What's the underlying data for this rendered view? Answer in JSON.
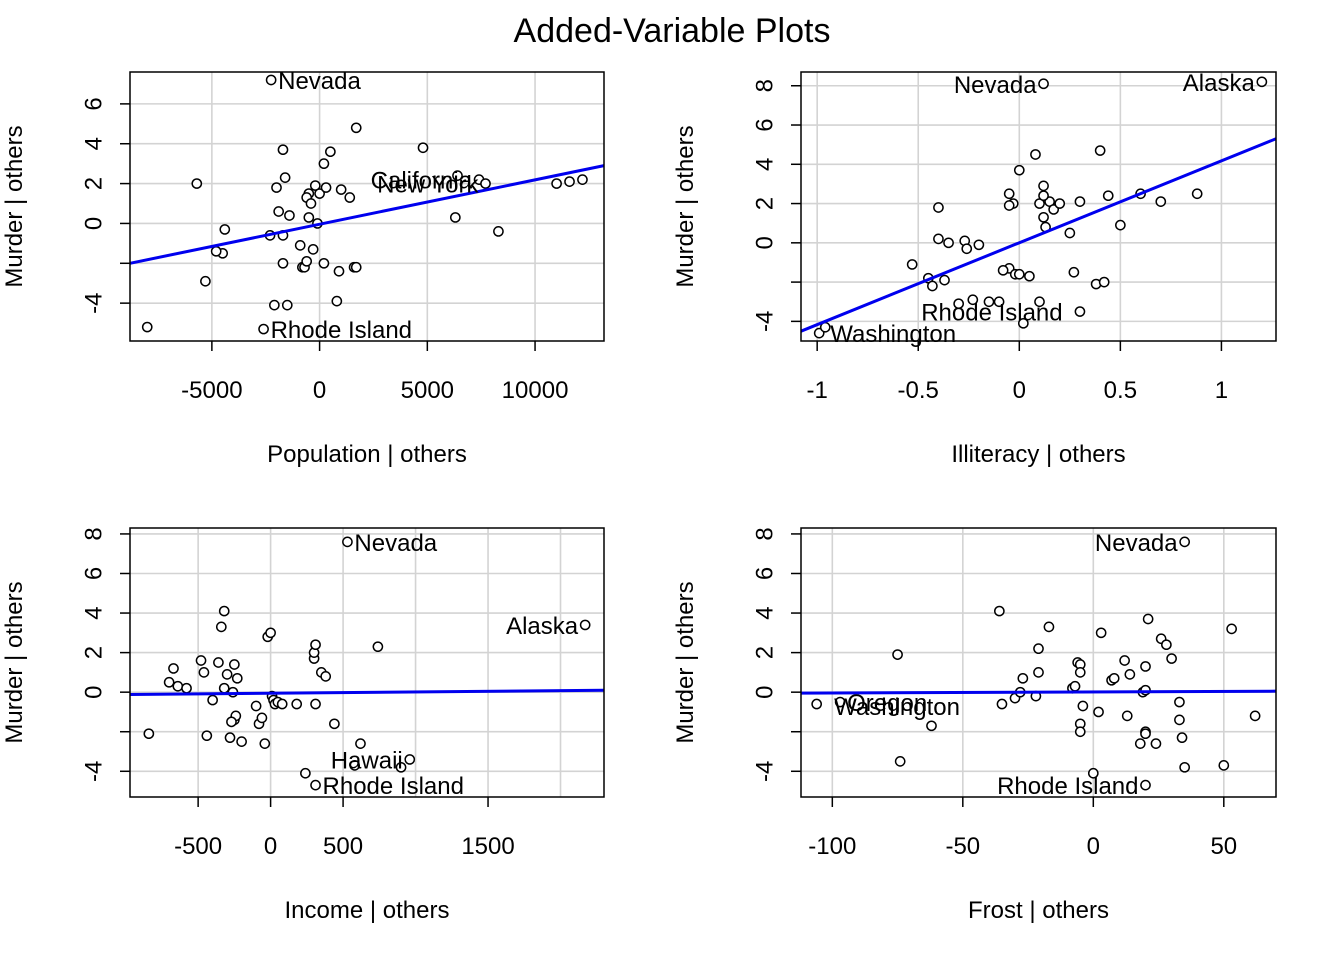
{
  "title": "Added-Variable Plots",
  "chart_data": [
    {
      "type": "scatter",
      "xlabel": "Population | others",
      "ylabel": "Murder  | others",
      "xlim": [
        -8800,
        13200
      ],
      "ylim": [
        -5.9,
        7.6
      ],
      "xticks": [
        -5000,
        0,
        5000,
        10000
      ],
      "yticks": [
        -4,
        0,
        2,
        4,
        6
      ],
      "x_gridlines": [
        -5000,
        0,
        5000,
        10000
      ],
      "y_gridlines": [
        -4,
        -2,
        0,
        2,
        4,
        6
      ],
      "grid": true,
      "line": {
        "x1": -8800,
        "y1": -2.0,
        "x2": 13200,
        "y2": 2.9,
        "color": "#0000ee"
      },
      "labels": [
        {
          "text": "Nevada",
          "x": -2250,
          "y": 7.2,
          "side": "right"
        },
        {
          "text": "Rhode Island",
          "x": -2600,
          "y": -5.3,
          "side": "right"
        },
        {
          "text": "California",
          "x": 7400,
          "y": 2.2,
          "side": "left"
        },
        {
          "text": "New York",
          "x": 7700,
          "y": 2.0,
          "side": "left"
        }
      ],
      "x": [
        -2250,
        -2600,
        -1700,
        -1600,
        -1400,
        -500,
        -600,
        200,
        -1500,
        -2100,
        -1700,
        -2300,
        -5700,
        -4400,
        -4500,
        -4800,
        -5300,
        -8000,
        -1700,
        -2000,
        -1900,
        -900,
        -800,
        -700,
        -600,
        -500,
        -400,
        -300,
        -200,
        -100,
        0,
        200,
        300,
        500,
        800,
        900,
        1000,
        1400,
        1600,
        1700,
        1700,
        4800,
        6300,
        6400,
        8300,
        7400,
        7700,
        11000,
        11600,
        12200
      ],
      "y": [
        7.2,
        -5.3,
        3.7,
        2.3,
        0.4,
        1.5,
        1.3,
        3.0,
        -4.1,
        -4.1,
        -2.0,
        -0.6,
        2.0,
        -0.3,
        -1.5,
        -1.4,
        -2.9,
        -5.2,
        -0.6,
        1.8,
        0.6,
        -1.1,
        -2.2,
        -2.2,
        -1.9,
        0.3,
        1.0,
        -1.3,
        1.9,
        0.0,
        1.5,
        -2.0,
        1.8,
        3.6,
        -3.9,
        -2.4,
        1.7,
        1.3,
        -2.2,
        -2.2,
        4.8,
        3.8,
        0.3,
        2.4,
        -0.4,
        2.2,
        2.0,
        2.0,
        2.1,
        2.2
      ]
    },
    {
      "type": "scatter",
      "xlabel": "Illiteracy | others",
      "ylabel": "Murder  | others",
      "xlim": [
        -1.08,
        1.27
      ],
      "ylim": [
        -5.0,
        8.7
      ],
      "xticks": [
        -1.0,
        -0.5,
        0.0,
        0.5,
        1.0
      ],
      "yticks": [
        -4,
        0,
        2,
        4,
        6,
        8
      ],
      "x_gridlines": [
        -1.0,
        -0.5,
        0.0,
        0.5,
        1.0
      ],
      "y_gridlines": [
        -4,
        -2,
        0,
        2,
        4,
        6,
        8
      ],
      "grid": true,
      "line": {
        "x1": -1.08,
        "y1": -4.5,
        "x2": 1.27,
        "y2": 5.3,
        "color": "#0000ee"
      },
      "labels": [
        {
          "text": "Nevada",
          "x": 0.12,
          "y": 8.1,
          "side": "left"
        },
        {
          "text": "Alaska",
          "x": 1.2,
          "y": 8.2,
          "side": "left"
        },
        {
          "text": "Rhode Island",
          "x": -0.52,
          "y": -3.5,
          "side": "right"
        },
        {
          "text": "Washington",
          "x": -0.97,
          "y": -4.6,
          "side": "right"
        }
      ],
      "x": [
        0.12,
        1.2,
        -0.99,
        -0.96,
        -0.53,
        -0.45,
        -0.4,
        -0.37,
        -0.35,
        -0.3,
        -0.27,
        -0.26,
        -0.23,
        -0.2,
        -0.15,
        -0.1,
        -0.05,
        -0.03,
        -0.02,
        0.0,
        0.02,
        0.05,
        0.08,
        0.1,
        0.12,
        0.13,
        0.15,
        0.17,
        0.2,
        0.25,
        0.27,
        0.3,
        0.38,
        0.4,
        0.42,
        0.44,
        0.5,
        0.6,
        0.7,
        0.88,
        -0.05,
        -0.05,
        -0.0,
        -0.08,
        0.1,
        0.12,
        -0.4,
        -0.43,
        0.12,
        0.3
      ],
      "y": [
        8.1,
        8.2,
        -4.6,
        -4.3,
        -1.1,
        -1.8,
        1.8,
        -1.9,
        0.0,
        -3.1,
        0.1,
        -0.3,
        -2.9,
        -0.1,
        -3.0,
        -3.0,
        -1.3,
        2.0,
        -1.6,
        -1.6,
        -4.1,
        -1.7,
        4.5,
        2.0,
        2.9,
        0.8,
        2.1,
        1.7,
        2.0,
        0.5,
        -1.5,
        2.1,
        -2.1,
        4.7,
        -2.0,
        2.4,
        0.9,
        2.5,
        2.1,
        2.5,
        2.5,
        1.9,
        3.7,
        -1.4,
        -3.0,
        2.4,
        0.2,
        -2.2,
        1.3,
        -3.5
      ]
    },
    {
      "type": "scatter",
      "xlabel": "Income | others",
      "ylabel": "Murder  | others",
      "xlim": [
        -970,
        2300
      ],
      "ylim": [
        -5.3,
        8.3
      ],
      "xticks": [
        -500,
        0,
        500,
        1500
      ],
      "yticks": [
        -4,
        0,
        2,
        4,
        6,
        8
      ],
      "x_gridlines": [
        -500,
        0,
        500,
        1000,
        1500,
        2000
      ],
      "y_gridlines": [
        -4,
        -2,
        0,
        2,
        4,
        6,
        8
      ],
      "grid": true,
      "line": {
        "x1": -970,
        "y1": -0.12,
        "x2": 2300,
        "y2": 0.1,
        "color": "#0000ee"
      },
      "labels": [
        {
          "text": "Nevada",
          "x": 530,
          "y": 7.6,
          "side": "right"
        },
        {
          "text": "Alaska",
          "x": 2170,
          "y": 3.4,
          "side": "left"
        },
        {
          "text": "Hawaii",
          "x": 960,
          "y": -3.4,
          "side": "left"
        },
        {
          "text": "Rhode Island",
          "x": 310,
          "y": -4.7,
          "side": "right"
        }
      ],
      "x": [
        530,
        2170,
        960,
        310,
        -840,
        -700,
        -670,
        -640,
        -580,
        -480,
        -440,
        -460,
        -400,
        -360,
        -340,
        -320,
        -300,
        -280,
        -260,
        -250,
        -240,
        -230,
        -200,
        -100,
        -80,
        -60,
        -40,
        -20,
        0,
        10,
        20,
        30,
        50,
        80,
        180,
        240,
        300,
        300,
        310,
        310,
        350,
        380,
        440,
        620,
        740,
        -250,
        -270,
        -320,
        900,
        580
      ],
      "y": [
        7.6,
        3.4,
        -3.4,
        -4.7,
        -2.1,
        0.5,
        1.2,
        0.3,
        0.2,
        1.6,
        -2.2,
        1.0,
        -0.4,
        1.5,
        3.3,
        4.1,
        0.9,
        -2.3,
        0.0,
        -1.4,
        -1.2,
        0.7,
        -2.5,
        -0.7,
        -1.6,
        -1.3,
        -2.6,
        2.8,
        3.0,
        -0.2,
        -0.4,
        -0.6,
        -0.5,
        -0.6,
        -0.6,
        -4.1,
        1.7,
        2.0,
        2.4,
        -0.6,
        1.0,
        0.8,
        -1.6,
        -2.6,
        2.3,
        1.4,
        -1.5,
        0.2,
        -3.8,
        -3.7
      ]
    },
    {
      "type": "scatter",
      "xlabel": "Frost | others",
      "ylabel": "Murder  | others",
      "xlim": [
        -112,
        70
      ],
      "ylim": [
        -5.3,
        8.3
      ],
      "xticks": [
        -100,
        -50,
        0,
        50
      ],
      "yticks": [
        -4,
        0,
        2,
        4,
        6,
        8
      ],
      "x_gridlines": [
        -100,
        -50,
        0,
        50
      ],
      "y_gridlines": [
        -4,
        -2,
        0,
        2,
        4,
        6,
        8
      ],
      "grid": true,
      "line": {
        "x1": -112,
        "y1": -0.05,
        "x2": 70,
        "y2": 0.05,
        "color": "#0000ee"
      },
      "labels": [
        {
          "text": "Nevada",
          "x": 35,
          "y": 7.6,
          "side": "left"
        },
        {
          "text": "Oregon",
          "x": -97,
          "y": -0.5,
          "side": "right"
        },
        {
          "text": "Washington",
          "x": -102,
          "y": -0.7,
          "side": "right"
        },
        {
          "text": "Rhode Island",
          "x": 20,
          "y": -4.7,
          "side": "left"
        }
      ],
      "x": [
        35,
        -97,
        -106,
        20,
        -75,
        -74,
        -62,
        -36,
        -35,
        -30,
        -28,
        -27,
        -22,
        -21,
        -17,
        -8,
        -7,
        -6,
        -5,
        -5,
        -5,
        -5,
        -4,
        0,
        2,
        3,
        7,
        8,
        12,
        13,
        14,
        18,
        19,
        20,
        20,
        20,
        20,
        21,
        24,
        26,
        28,
        30,
        33,
        33,
        34,
        35,
        50,
        53,
        62,
        -21
      ],
      "y": [
        7.6,
        -0.5,
        -0.6,
        -4.7,
        1.9,
        -3.5,
        -1.7,
        4.1,
        -0.6,
        -0.3,
        0.0,
        0.7,
        -0.2,
        2.2,
        3.3,
        0.2,
        0.3,
        1.5,
        1.4,
        1.0,
        -1.6,
        -2.0,
        -0.7,
        -4.1,
        -1.0,
        3.0,
        0.6,
        0.7,
        1.6,
        -1.2,
        0.9,
        -2.6,
        0.0,
        0.1,
        -2.0,
        -2.1,
        1.3,
        3.7,
        -2.6,
        2.7,
        2.4,
        1.7,
        -0.5,
        -1.4,
        -2.3,
        -3.8,
        -3.7,
        3.2,
        -1.2,
        1.0
      ]
    }
  ]
}
